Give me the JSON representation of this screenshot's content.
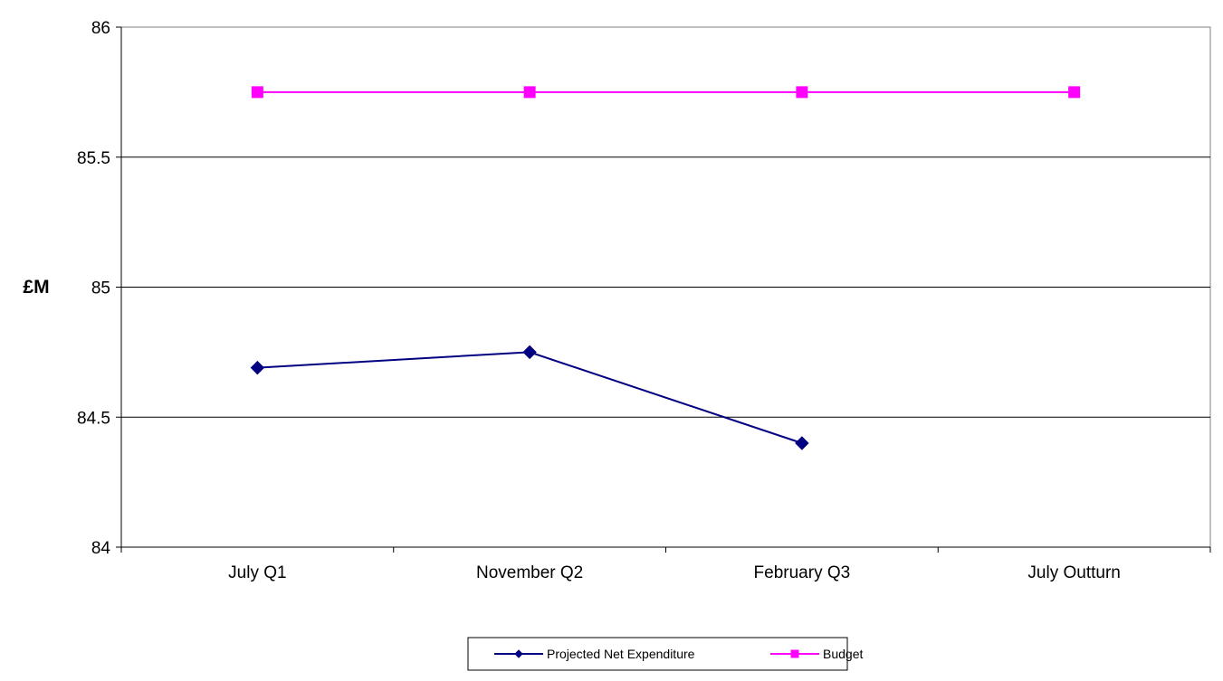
{
  "chart_data": {
    "type": "line",
    "title": "",
    "xlabel": "",
    "ylabel": "£M",
    "categories": [
      "July Q1",
      "November Q2",
      "February Q3",
      "July Outturn"
    ],
    "ylim": [
      84,
      86
    ],
    "yticks": [
      "84",
      "84.5",
      "85",
      "85.5",
      "86"
    ],
    "grid": true,
    "legend_position": "bottom",
    "series": [
      {
        "name": "Projected Net Expenditure",
        "values": [
          84.69,
          84.75,
          84.4,
          null
        ],
        "color": "#000080",
        "marker": "diamond"
      },
      {
        "name": "Budget",
        "values": [
          85.75,
          85.75,
          85.75,
          85.75
        ],
        "color": "#FF00FF",
        "marker": "square"
      }
    ]
  }
}
